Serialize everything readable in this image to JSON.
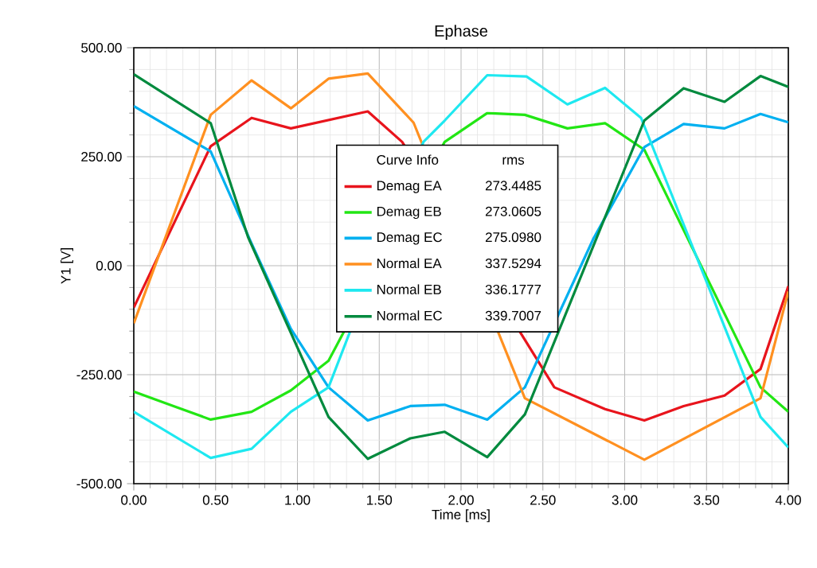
{
  "chart_data": {
    "type": "line",
    "title": "Ephase",
    "xlabel": "Time [ms]",
    "ylabel": "Y1 [V]",
    "legend_title": "Curve Info",
    "annotations": [
      "rms",
      "273.4485",
      "273.0605",
      "275.0980",
      "337.5294",
      "336.1777",
      "339.7007"
    ],
    "xlim": [
      0,
      4
    ],
    "ylim": [
      -500,
      500
    ],
    "xticks": [
      {
        "value": 0,
        "label": "0.00"
      },
      {
        "value": 0.5,
        "label": "0.50"
      },
      {
        "value": 1,
        "label": "1.00"
      },
      {
        "value": 1.5,
        "label": "1.50"
      },
      {
        "value": 2,
        "label": "2.00"
      },
      {
        "value": 2.5,
        "label": "2.50"
      },
      {
        "value": 3,
        "label": "3.00"
      },
      {
        "value": 3.5,
        "label": "3.50"
      },
      {
        "value": 4,
        "label": "4.00"
      }
    ],
    "yticks": [
      {
        "value": -500,
        "label": "-500.00"
      },
      {
        "value": -250,
        "label": "-250.00"
      },
      {
        "value": 0,
        "label": "0.00"
      },
      {
        "value": 250,
        "label": "250.00"
      },
      {
        "value": 500,
        "label": "500.00"
      }
    ],
    "grid": true,
    "legend": "center",
    "line_style": "solid",
    "marker": "none",
    "series": [
      {
        "name": "Demag EA",
        "color": "#e8141c",
        "x": [
          0,
          0.47,
          0.72,
          0.96,
          1.43,
          1.64,
          2.57,
          2.88,
          3.12,
          3.36,
          3.61,
          3.83,
          4.0
        ],
        "values": [
          -96,
          274,
          339,
          315,
          354,
          284,
          -279,
          -329,
          -355,
          -322,
          -298,
          -237,
          -47
        ]
      },
      {
        "name": "Demag EB",
        "color": "#22e614",
        "x": [
          0,
          0.47,
          0.72,
          0.96,
          1.19,
          1.9,
          2.16,
          2.39,
          2.65,
          2.88,
          3.12,
          3.83,
          4.0
        ],
        "values": [
          -289,
          -353,
          -335,
          -286,
          -218,
          284,
          350,
          346,
          315,
          327,
          266,
          -279,
          -335
        ]
      },
      {
        "name": "Demag EC",
        "color": "#00b0f0",
        "x": [
          0,
          0.47,
          0.72,
          0.96,
          1.19,
          1.43,
          1.69,
          1.9,
          2.16,
          2.39,
          2.81,
          3.12,
          3.36,
          3.61,
          3.83,
          4.0
        ],
        "values": [
          366,
          262,
          51,
          -145,
          -279,
          -355,
          -322,
          -319,
          -353,
          -279,
          63,
          272,
          325,
          315,
          348,
          329
        ]
      },
      {
        "name": "Normal EA",
        "color": "#ff9020",
        "x": [
          0,
          0.47,
          0.72,
          0.96,
          1.19,
          1.43,
          1.71,
          2.39,
          3.12,
          3.83,
          4.0
        ],
        "values": [
          -132,
          346,
          425,
          361,
          429,
          441,
          328,
          -304,
          -445,
          -304,
          -59
        ]
      },
      {
        "name": "Normal EB",
        "color": "#1ee8f0",
        "x": [
          0,
          0.47,
          0.72,
          0.96,
          1.19,
          1.77,
          1.9,
          2.16,
          2.4,
          2.65,
          2.88,
          3.1,
          3.83,
          4.0
        ],
        "values": [
          -335,
          -441,
          -420,
          -335,
          -279,
          284,
          333,
          437,
          434,
          370,
          408,
          339,
          -347,
          -417
        ]
      },
      {
        "name": "Normal EC",
        "color": "#008a3e",
        "x": [
          0,
          0.47,
          0.7,
          1.19,
          1.43,
          1.69,
          1.9,
          2.16,
          2.39,
          3.12,
          3.36,
          3.61,
          3.83,
          4.0
        ],
        "values": [
          439,
          327,
          64,
          -347,
          -443,
          -396,
          -381,
          -439,
          -341,
          333,
          407,
          376,
          435,
          410
        ]
      }
    ]
  }
}
